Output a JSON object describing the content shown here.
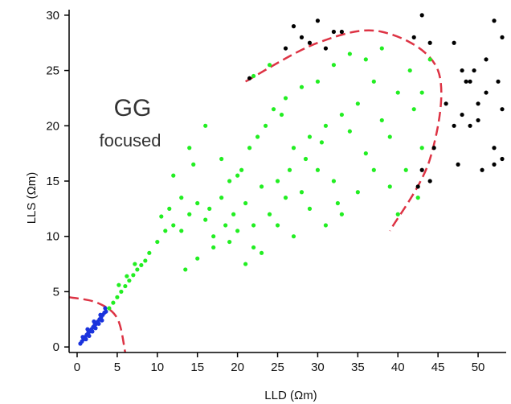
{
  "chart_data": {
    "type": "scatter",
    "title": "",
    "xlabel": "LLD (Ωm)",
    "ylabel": "LLS (Ωm)",
    "xlim": [
      -1,
      53.5
    ],
    "ylim": [
      -0.5,
      30.5
    ],
    "xticks": [
      "0",
      "5",
      "10",
      "15",
      "20",
      "25",
      "30",
      "35",
      "40",
      "45",
      "50"
    ],
    "yticks": [
      "0",
      "5",
      "10",
      "15",
      "20",
      "25",
      "30"
    ],
    "grid": false,
    "annotations": [
      {
        "text": "GG"
      },
      {
        "text": "focused"
      }
    ],
    "colors": {
      "black": "#000000",
      "green": "#22ee22",
      "blue": "#1a33dd",
      "boundary": "#dd3344"
    },
    "boundaries": [
      {
        "name": "lower-boundary",
        "points": [
          [
            -1,
            4.5
          ],
          [
            2.5,
            4.0
          ],
          [
            5,
            2.6
          ],
          [
            6,
            -0.5
          ]
        ]
      },
      {
        "name": "upper-boundary",
        "points": [
          [
            21,
            24
          ],
          [
            30,
            27.5
          ],
          [
            38,
            28.5
          ],
          [
            45,
            25
          ],
          [
            44,
            17
          ],
          [
            39,
            10.5
          ]
        ]
      }
    ],
    "series": [
      {
        "color": "blue",
        "points": [
          [
            0.4,
            0.3
          ],
          [
            0.6,
            0.5
          ],
          [
            0.8,
            0.7
          ],
          [
            1.0,
            0.9
          ],
          [
            1.2,
            1.1
          ],
          [
            1.4,
            1.3
          ],
          [
            1.6,
            1.4
          ],
          [
            1.8,
            1.6
          ],
          [
            2.0,
            1.8
          ],
          [
            2.2,
            2.0
          ],
          [
            2.4,
            2.1
          ],
          [
            2.6,
            2.3
          ],
          [
            2.8,
            2.5
          ],
          [
            3.0,
            2.7
          ],
          [
            3.2,
            2.9
          ],
          [
            3.4,
            3.1
          ],
          [
            3.6,
            3.2
          ],
          [
            1.1,
            0.7
          ],
          [
            1.5,
            1.0
          ],
          [
            1.9,
            1.4
          ],
          [
            2.3,
            1.7
          ],
          [
            2.7,
            2.1
          ],
          [
            3.1,
            2.4
          ],
          [
            0.7,
            0.9
          ],
          [
            1.3,
            1.6
          ],
          [
            2.1,
            2.3
          ],
          [
            2.9,
            2.9
          ],
          [
            3.5,
            3.5
          ]
        ]
      },
      {
        "color": "green",
        "points": [
          [
            4.0,
            3.5
          ],
          [
            4.5,
            4.0
          ],
          [
            5.0,
            4.5
          ],
          [
            5.5,
            5.0
          ],
          [
            6.0,
            5.5
          ],
          [
            6.5,
            6.0
          ],
          [
            7.0,
            6.5
          ],
          [
            7.5,
            7.0
          ],
          [
            8.0,
            7.4
          ],
          [
            8.5,
            7.8
          ],
          [
            5.2,
            5.6
          ],
          [
            6.2,
            6.4
          ],
          [
            7.2,
            7.5
          ],
          [
            9.0,
            8.5
          ],
          [
            10.0,
            9.5
          ],
          [
            11.0,
            10.5
          ],
          [
            12.0,
            11.0
          ],
          [
            13.0,
            10.5
          ],
          [
            13.5,
            7.0
          ],
          [
            14.0,
            12.0
          ],
          [
            15.0,
            13.0
          ],
          [
            16.0,
            11.5
          ],
          [
            16.5,
            12.5
          ],
          [
            17.0,
            10.0
          ],
          [
            18.0,
            13.5
          ],
          [
            18.5,
            11.0
          ],
          [
            19.0,
            15.0
          ],
          [
            19.5,
            12.0
          ],
          [
            20.0,
            10.5
          ],
          [
            20.5,
            16.0
          ],
          [
            21.0,
            13.0
          ],
          [
            21.5,
            18.0
          ],
          [
            22.0,
            11.0
          ],
          [
            22.5,
            19.0
          ],
          [
            23.0,
            14.5
          ],
          [
            23.5,
            20.0
          ],
          [
            24.0,
            12.0
          ],
          [
            24.5,
            21.5
          ],
          [
            25.0,
            15.0
          ],
          [
            25.5,
            21.0
          ],
          [
            26.0,
            13.5
          ],
          [
            26.5,
            16.0
          ],
          [
            27.0,
            18.0
          ],
          [
            28.0,
            14.0
          ],
          [
            28.5,
            17.0
          ],
          [
            29.0,
            19.0
          ],
          [
            30.0,
            16.0
          ],
          [
            30.5,
            18.5
          ],
          [
            31.0,
            20.0
          ],
          [
            32.0,
            15.0
          ],
          [
            32.5,
            13.0
          ],
          [
            33.0,
            12.0
          ],
          [
            34.0,
            19.5
          ],
          [
            35.0,
            22.0
          ],
          [
            36.0,
            17.5
          ],
          [
            37.0,
            24.0
          ],
          [
            38.0,
            27.0
          ],
          [
            39.0,
            19.0
          ],
          [
            40.0,
            23.0
          ],
          [
            41.0,
            16.0
          ],
          [
            41.5,
            25.0
          ],
          [
            42.0,
            21.5
          ],
          [
            42.5,
            13.5
          ],
          [
            43.0,
            18.0
          ],
          [
            44.0,
            26.0
          ],
          [
            22.0,
            24.5
          ],
          [
            24.0,
            25.5
          ],
          [
            26.0,
            22.5
          ],
          [
            28.0,
            23.5
          ],
          [
            30.0,
            24.0
          ],
          [
            32.0,
            25.5
          ],
          [
            34.0,
            26.5
          ],
          [
            36.0,
            26.0
          ],
          [
            14.0,
            18.0
          ],
          [
            16.0,
            20.0
          ],
          [
            18.0,
            17.0
          ],
          [
            20.0,
            15.5
          ],
          [
            22.0,
            9.0
          ],
          [
            25.0,
            11.0
          ],
          [
            27.0,
            10.0
          ],
          [
            29.0,
            12.5
          ],
          [
            31.0,
            11.0
          ],
          [
            35.0,
            14.0
          ],
          [
            37.0,
            16.0
          ],
          [
            39.0,
            14.5
          ],
          [
            40.0,
            12.0
          ],
          [
            38.0,
            20.5
          ],
          [
            33.0,
            21.0
          ],
          [
            43.0,
            23.0
          ],
          [
            15.0,
            8.0
          ],
          [
            17.0,
            9.0
          ],
          [
            19.0,
            9.5
          ],
          [
            21.0,
            7.5
          ],
          [
            23.0,
            8.5
          ],
          [
            13.0,
            13.5
          ],
          [
            12.0,
            15.5
          ],
          [
            14.5,
            16.5
          ],
          [
            11.5,
            12.5
          ],
          [
            10.5,
            11.8
          ]
        ]
      },
      {
        "color": "black",
        "points": [
          [
            21.5,
            24.3
          ],
          [
            26,
            27
          ],
          [
            27,
            29
          ],
          [
            28,
            28
          ],
          [
            29,
            27.5
          ],
          [
            30,
            29.5
          ],
          [
            31,
            27
          ],
          [
            32,
            28.5
          ],
          [
            33,
            28.5
          ],
          [
            43,
            30
          ],
          [
            44,
            27.5
          ],
          [
            42,
            28
          ],
          [
            47,
            27.5
          ],
          [
            48,
            25
          ],
          [
            49,
            24
          ],
          [
            50,
            22
          ],
          [
            51,
            26
          ],
          [
            52,
            29.5
          ],
          [
            53,
            28
          ],
          [
            48,
            21
          ],
          [
            47.5,
            16.5
          ],
          [
            50,
            20.5
          ],
          [
            52,
            16.5
          ],
          [
            53,
            21.5
          ],
          [
            53,
            17
          ],
          [
            46,
            22
          ],
          [
            48.5,
            24
          ],
          [
            51,
            23
          ],
          [
            49.5,
            25
          ],
          [
            52.5,
            24
          ],
          [
            44.5,
            18
          ],
          [
            43,
            16
          ],
          [
            44,
            15
          ],
          [
            42.5,
            14.5
          ],
          [
            50.5,
            16
          ],
          [
            49,
            20
          ],
          [
            47,
            20
          ],
          [
            52,
            18
          ]
        ]
      }
    ]
  }
}
